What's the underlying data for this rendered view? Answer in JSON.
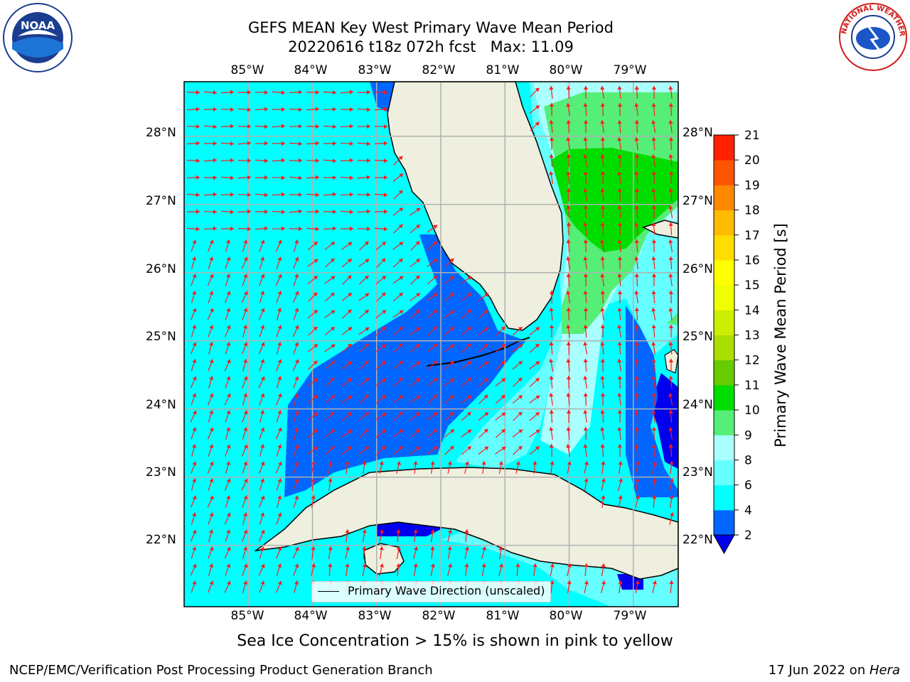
{
  "title": {
    "line1": "GEFS MEAN Key West Primary Wave Mean Period",
    "line2": "20220616 t18z 072h fcst   Max: 11.09"
  },
  "lon_ticks": [
    "85°W",
    "84°W",
    "83°W",
    "82°W",
    "81°W",
    "80°W",
    "79°W"
  ],
  "lat_ticks": [
    "28°N",
    "27°N",
    "26°N",
    "25°N",
    "24°N",
    "23°N",
    "22°N"
  ],
  "map": {
    "lon_range": [
      -86,
      -78.3
    ],
    "lat_range": [
      21.1,
      28.8
    ],
    "grid": true,
    "land_color": "#efefdf"
  },
  "legend": {
    "label": "Primary Wave Direction (unscaled)"
  },
  "colorbar": {
    "label": "Primary Wave Mean Period [s]",
    "levels": [
      2,
      4,
      6,
      8,
      9,
      10,
      11,
      12,
      13,
      14,
      15,
      16,
      17,
      18,
      19,
      20,
      21
    ],
    "tick_labels": [
      "2",
      "4",
      "6",
      "8",
      "9",
      "10",
      "11",
      "12",
      "13",
      "14",
      "15",
      "16",
      "17",
      "18",
      "19",
      "20",
      "21"
    ],
    "colors": [
      "#0066ff",
      "#00ffff",
      "#66ffff",
      "#aaffff",
      "#55ee77",
      "#00dd00",
      "#66cc00",
      "#aadd00",
      "#ccee00",
      "#eeff00",
      "#ffff00",
      "#ffdd00",
      "#ffbb00",
      "#ff8800",
      "#ff5500",
      "#ff2200"
    ],
    "under_color": "#0000ee",
    "extend": "min"
  },
  "bottom_note": "Sea Ice Concentration > 15% is shown in pink to yellow",
  "footer": {
    "left": "NCEP/EMC/Verification Post Processing Product Generation Branch",
    "right_date": "17 Jun 2022 on ",
    "right_host": "Hera"
  },
  "logos": {
    "noaa_text": "NOAA",
    "nws_text": "NATIONAL WEATHER SERVICE"
  }
}
